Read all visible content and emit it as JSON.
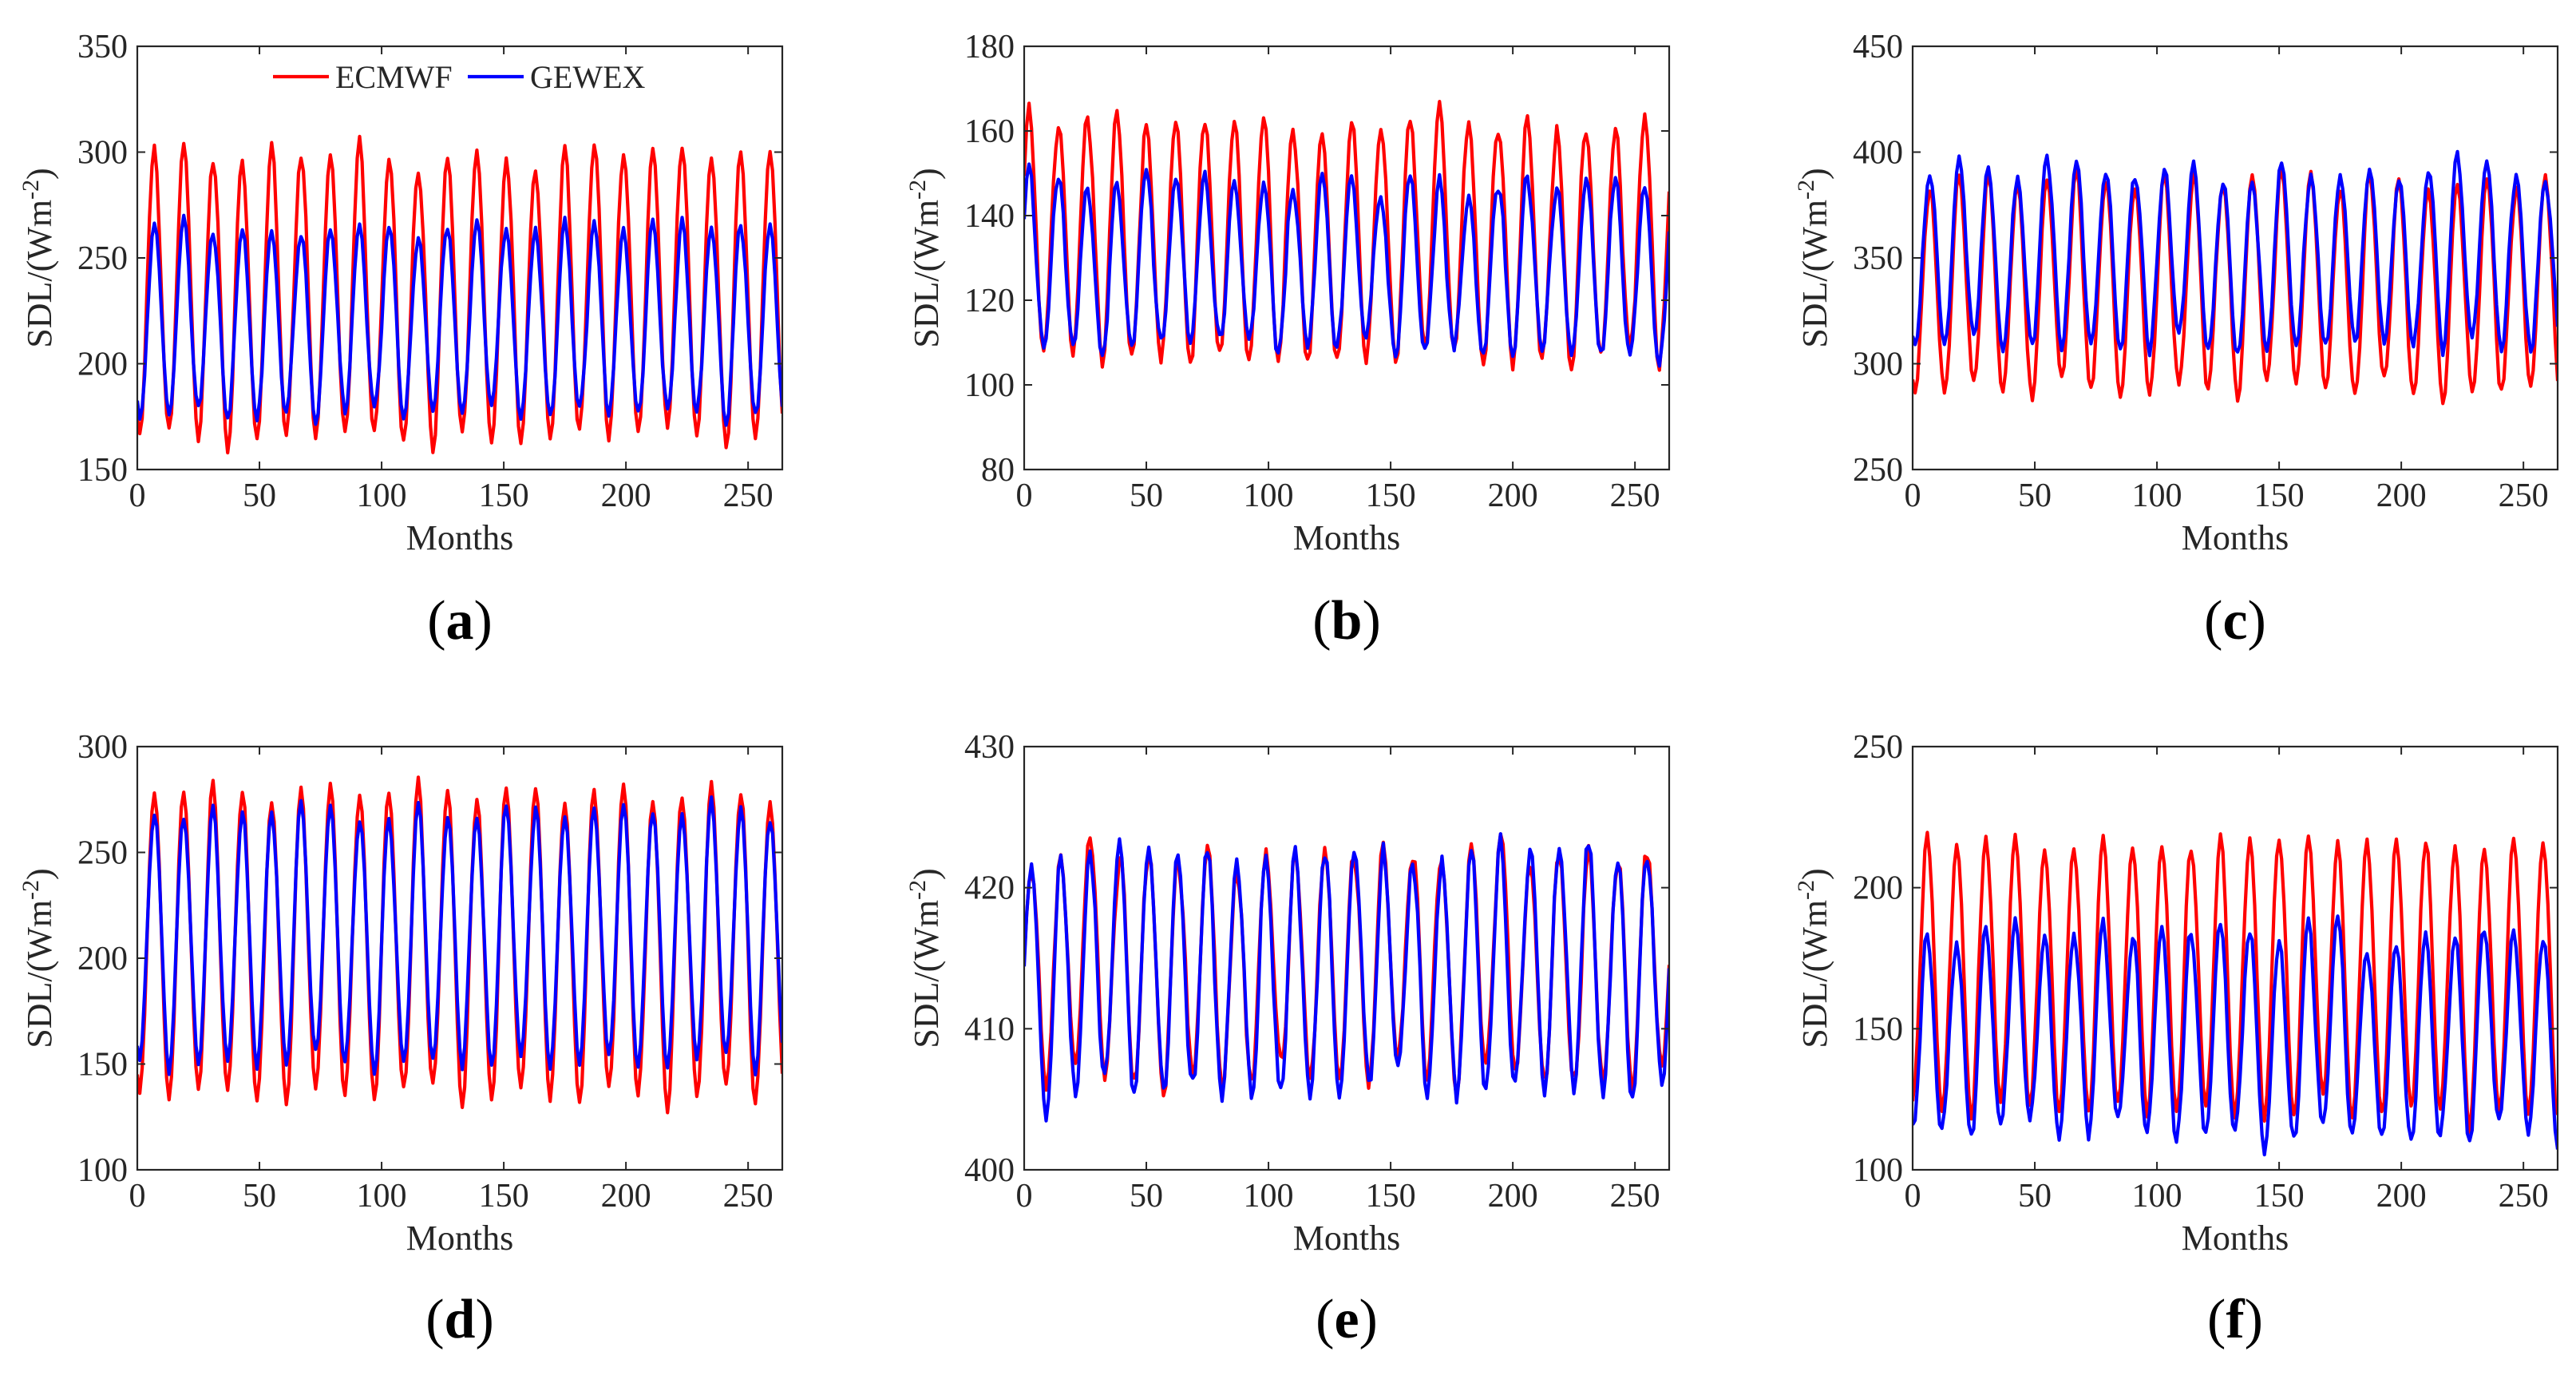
{
  "figure": {
    "legend": [
      {
        "label": "ECMWF",
        "color": "#ff0000"
      },
      {
        "label": "GEWEX",
        "color": "#0000ff"
      }
    ]
  },
  "chart_data": [
    {
      "type": "line",
      "panel": "a",
      "title": "",
      "xlabel": "Months",
      "ylabel": "SDL/(Wm",
      "ylabel_sup": "-2",
      "ylabel_close": ")",
      "xlim": [
        0,
        264
      ],
      "ylim": [
        150,
        350
      ],
      "xticks": [
        0,
        50,
        100,
        150,
        200,
        250
      ],
      "yticks": [
        150,
        200,
        250,
        300,
        350
      ],
      "series": [
        {
          "name": "ECMWF",
          "color": "#ff0000",
          "period": 12,
          "n": 264,
          "mean": 232,
          "amp": 67,
          "phase_peak": 7,
          "noise": 6
        },
        {
          "name": "GEWEX",
          "color": "#0000ff",
          "period": 12,
          "n": 264,
          "mean": 220,
          "amp": 44,
          "phase_peak": 7,
          "noise": 5
        }
      ],
      "legend_position": "top-center"
    },
    {
      "type": "line",
      "panel": "b",
      "title": "",
      "xlabel": "Months",
      "ylabel": "SDL/(Wm",
      "ylabel_sup": "-2",
      "ylabel_close": ")",
      "xlim": [
        0,
        264
      ],
      "ylim": [
        80,
        180
      ],
      "xticks": [
        0,
        50,
        100,
        150,
        200,
        250
      ],
      "yticks": [
        80,
        100,
        120,
        140,
        160,
        180
      ],
      "series": [
        {
          "name": "ECMWF",
          "color": "#ff0000",
          "period": 12,
          "n": 264,
          "mean": 134,
          "amp": 28,
          "phase_peak": 2,
          "noise": 4
        },
        {
          "name": "GEWEX",
          "color": "#0000ff",
          "period": 12,
          "n": 264,
          "mean": 128,
          "amp": 20,
          "phase_peak": 2,
          "noise": 4
        }
      ],
      "legend_position": "none"
    },
    {
      "type": "line",
      "panel": "c",
      "title": "",
      "xlabel": "Months",
      "ylabel": "SDL/(Wm",
      "ylabel_sup": "-2",
      "ylabel_close": ")",
      "xlim": [
        0,
        264
      ],
      "ylim": [
        250,
        450
      ],
      "xticks": [
        0,
        50,
        100,
        150,
        200,
        250
      ],
      "yticks": [
        250,
        300,
        350,
        400,
        450
      ],
      "series": [
        {
          "name": "ECMWF",
          "color": "#ff0000",
          "period": 12,
          "n": 264,
          "mean": 337,
          "amp": 50,
          "phase_peak": 7,
          "noise": 6
        },
        {
          "name": "GEWEX",
          "color": "#0000ff",
          "period": 12,
          "n": 264,
          "mean": 350,
          "amp": 42,
          "phase_peak": 7,
          "noise": 7
        }
      ],
      "legend_position": "none"
    },
    {
      "type": "line",
      "panel": "d",
      "title": "",
      "xlabel": "Months",
      "ylabel": "SDL/(Wm",
      "ylabel_sup": "-2",
      "ylabel_close": ")",
      "xlim": [
        0,
        264
      ],
      "ylim": [
        100,
        300
      ],
      "xticks": [
        0,
        50,
        100,
        150,
        200,
        250
      ],
      "yticks": [
        100,
        150,
        200,
        250,
        300
      ],
      "series": [
        {
          "name": "ECMWF",
          "color": "#ff0000",
          "period": 12,
          "n": 264,
          "mean": 207,
          "amp": 72,
          "phase_peak": 7,
          "noise": 4
        },
        {
          "name": "GEWEX",
          "color": "#0000ff",
          "period": 12,
          "n": 264,
          "mean": 210,
          "amp": 60,
          "phase_peak": 7,
          "noise": 4
        }
      ],
      "legend_position": "none"
    },
    {
      "type": "line",
      "panel": "e",
      "title": "",
      "xlabel": "Months",
      "ylabel": "SDL/(Wm",
      "ylabel_sup": "-2",
      "ylabel_close": ")",
      "xlim": [
        0,
        264
      ],
      "ylim": [
        400,
        430
      ],
      "xticks": [
        0,
        50,
        100,
        150,
        200,
        250
      ],
      "yticks": [
        400,
        410,
        420,
        430
      ],
      "series": [
        {
          "name": "ECMWF",
          "color": "#ff0000",
          "period": 12,
          "n": 264,
          "mean": 414.5,
          "amp": 8,
          "phase_peak": 3,
          "noise": 1.5
        },
        {
          "name": "GEWEX",
          "color": "#0000ff",
          "period": 12,
          "n": 264,
          "mean": 414,
          "amp": 8.5,
          "phase_peak": 3,
          "noise": 1.5
        }
      ],
      "legend_position": "none"
    },
    {
      "type": "line",
      "panel": "f",
      "title": "",
      "xlabel": "Months",
      "ylabel": "SDL/(Wm",
      "ylabel_sup": "-2",
      "ylabel_close": ")",
      "xlim": [
        0,
        264
      ],
      "ylim": [
        100,
        250
      ],
      "xticks": [
        0,
        50,
        100,
        150,
        200,
        250
      ],
      "yticks": [
        100,
        150,
        200,
        250
      ],
      "series": [
        {
          "name": "ECMWF",
          "color": "#ff0000",
          "period": 12,
          "n": 264,
          "mean": 168,
          "amp": 48,
          "phase_peak": 6,
          "noise": 5
        },
        {
          "name": "GEWEX",
          "color": "#0000ff",
          "period": 12,
          "n": 264,
          "mean": 148,
          "amp": 36,
          "phase_peak": 6,
          "noise": 6
        }
      ],
      "legend_position": "none"
    }
  ],
  "panel_labels": [
    {
      "open": "(",
      "letter": "a",
      "close": ")"
    },
    {
      "open": "(",
      "letter": "b",
      "close": ")"
    },
    {
      "open": "(",
      "letter": "c",
      "close": ")"
    },
    {
      "open": "(",
      "letter": "d",
      "close": ")"
    },
    {
      "open": "(",
      "letter": "e",
      "close": ")"
    },
    {
      "open": "(",
      "letter": "f",
      "close": ")"
    }
  ]
}
